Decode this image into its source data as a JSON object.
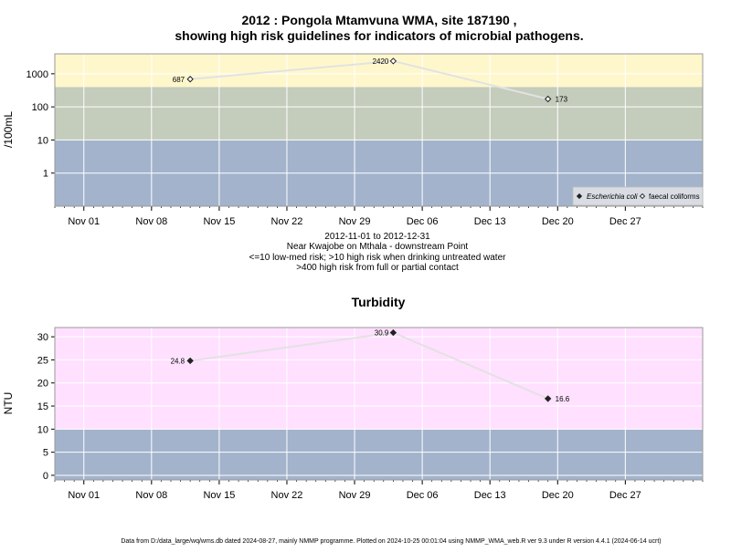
{
  "chart_data": [
    {
      "type": "line",
      "title_line1": "2012 : Pongola Mtamvuna WMA, site 187190 ,",
      "title_line2": "showing high risk guidelines for indicators of microbial pathogens.",
      "ylabel": "/100mL",
      "yscale": "log",
      "ylim": [
        0.1,
        4000
      ],
      "y_ticks": [
        1,
        10,
        100,
        1000
      ],
      "y_tick_labels": [
        "1",
        "10",
        "100",
        "1000"
      ],
      "x_tick_labels": [
        "Nov 01",
        "Nov 08",
        "Nov 15",
        "Nov 22",
        "Nov 29",
        "Dec 06",
        "Dec 13",
        "Dec 20",
        "Dec 27"
      ],
      "x_tick_dates": [
        "2012-11-01",
        "2012-11-08",
        "2012-11-15",
        "2012-11-22",
        "2012-11-29",
        "2012-12-06",
        "2012-12-13",
        "2012-12-20",
        "2012-12-27"
      ],
      "xlim": [
        "2012-10-29",
        "2013-01-04"
      ],
      "bands": [
        {
          "from": 0.1,
          "to": 10,
          "color": "#a3b3cc"
        },
        {
          "from": 10,
          "to": 400,
          "color": "#c4ccbc"
        },
        {
          "from": 400,
          "to": 4000,
          "color": "#fff7cc"
        }
      ],
      "series": [
        {
          "name": "faecal coliforms",
          "marker": "open-diamond",
          "x": [
            "2012-11-12",
            "2012-12-03",
            "2012-12-19"
          ],
          "values": [
            687,
            2420,
            173
          ],
          "labels": [
            "687",
            "2420",
            "173"
          ]
        }
      ],
      "legend": {
        "position": "bottom-right",
        "items": [
          {
            "label": "Escherichia coli",
            "marker": "filled-diamond"
          },
          {
            "label": "faecal coliforms",
            "marker": "open-diamond"
          }
        ]
      },
      "captions": [
        "2012-11-01 to 2012-12-31",
        "Near Kwajobe on Mthala - downstream Point",
        "<=10 low-med risk; >10 high risk when drinking untreated water",
        ">400 high risk from full or partial contact"
      ],
      "grid": true
    },
    {
      "type": "line",
      "title": "Turbidity",
      "ylabel": "NTU",
      "ylim": [
        -1,
        32
      ],
      "y_ticks": [
        0,
        5,
        10,
        15,
        20,
        25,
        30
      ],
      "y_tick_labels": [
        "0",
        "5",
        "10",
        "15",
        "20",
        "25",
        "30"
      ],
      "x_tick_labels": [
        "Nov 01",
        "Nov 08",
        "Nov 15",
        "Nov 22",
        "Nov 29",
        "Dec 06",
        "Dec 13",
        "Dec 20",
        "Dec 27"
      ],
      "x_tick_dates": [
        "2012-11-01",
        "2012-11-08",
        "2012-11-15",
        "2012-11-22",
        "2012-11-29",
        "2012-12-06",
        "2012-12-13",
        "2012-12-20",
        "2012-12-27"
      ],
      "xlim": [
        "2012-10-29",
        "2013-01-04"
      ],
      "bands": [
        {
          "from": -1,
          "to": 10,
          "color": "#a3b3cc"
        },
        {
          "from": 10,
          "to": 32,
          "color": "#ffe0ff"
        }
      ],
      "series": [
        {
          "marker": "filled-diamond",
          "x": [
            "2012-11-12",
            "2012-12-03",
            "2012-12-19"
          ],
          "values": [
            24.8,
            30.9,
            16.6
          ],
          "labels": [
            "24.8",
            "30.9",
            "16.6"
          ]
        }
      ],
      "grid": true
    }
  ],
  "footer": "Data from D:/data_large/wq/wms.db dated 2024-08-27, mainly NMMP programme. Plotted on 2024-10-25 00:01:04 using NMMP_WMA_web.R ver 9.3 under R version 4.4.1 (2024-06-14 ucrt)"
}
